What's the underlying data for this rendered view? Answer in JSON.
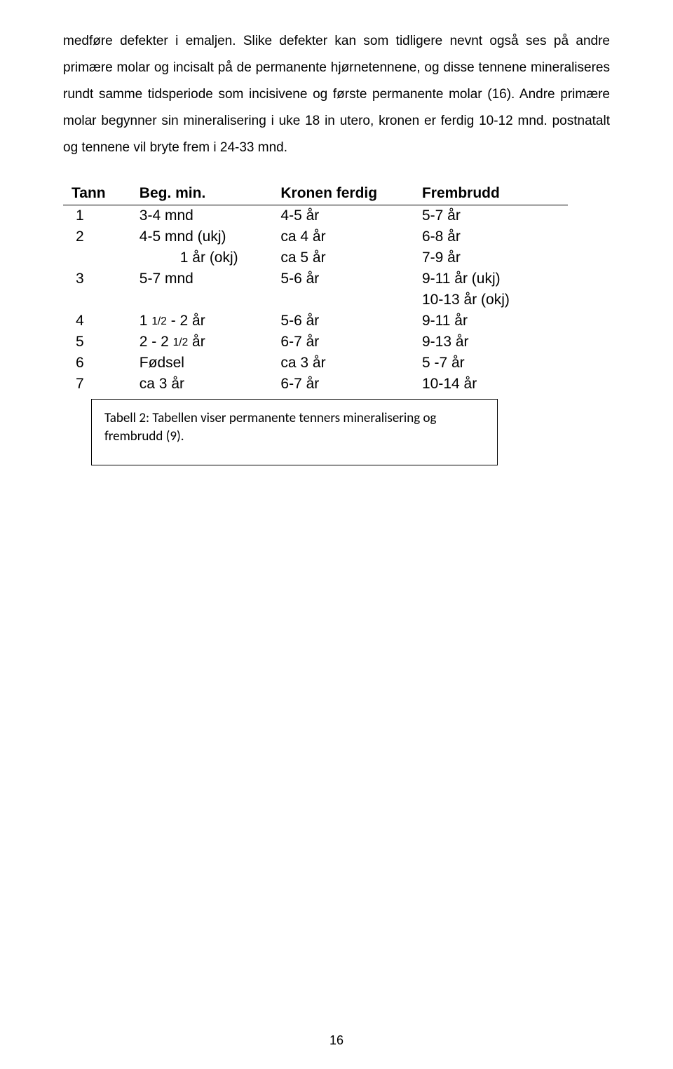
{
  "paragraph": "medføre defekter i emaljen. Slike defekter kan som tidligere nevnt også ses på andre primære molar og incisalt på de permanente hjørnetennene, og disse tennene mineraliseres rundt samme tidsperiode som incisivene og første permanente molar (16). Andre primære molar begynner sin mineralisering i uke 18 in utero, kronen er ferdig 10-12 mnd. postnatalt og tennene vil bryte frem i 24-33 mnd.",
  "table": {
    "headers": {
      "tann": "Tann",
      "beg": "Beg. min.",
      "kron": "Kronen ferdig",
      "frem": "Frembrudd"
    },
    "rows": [
      {
        "t": "1",
        "b": "3-4 mnd",
        "k": "4-5 år",
        "f": "5-7 år"
      },
      {
        "t": "2",
        "b": "4-5 mnd (ukj)",
        "k": "ca 4 år",
        "f": "6-8 år"
      },
      {
        "t": "",
        "b": "1 år     (okj)",
        "k": "ca 5 år",
        "f": "7-9 år"
      },
      {
        "t": "3",
        "b": "5-7 mnd",
        "k": "5-6 år",
        "f": "9-11 år (ukj)"
      },
      {
        "t": "",
        "b": "",
        "k": "",
        "f": "10-13 år (okj)"
      },
      {
        "t": "4",
        "b": "1 1/2 - 2 år",
        "k": "5-6 år",
        "f": "9-11 år"
      },
      {
        "t": "5",
        "b": "2 - 2 1/2 år",
        "k": "6-7 år",
        "f": "9-13 år"
      },
      {
        "t": "6",
        "b": "Fødsel",
        "k": "ca 3 år",
        "f": "5 -7 år"
      },
      {
        "t": "7",
        "b": "ca 3 år",
        "k": "6-7 år",
        "f": "10-14 år"
      }
    ]
  },
  "caption": "Tabell 2: Tabellen viser permanente tenners mineralisering og frembrudd (9).",
  "page_number": "16"
}
